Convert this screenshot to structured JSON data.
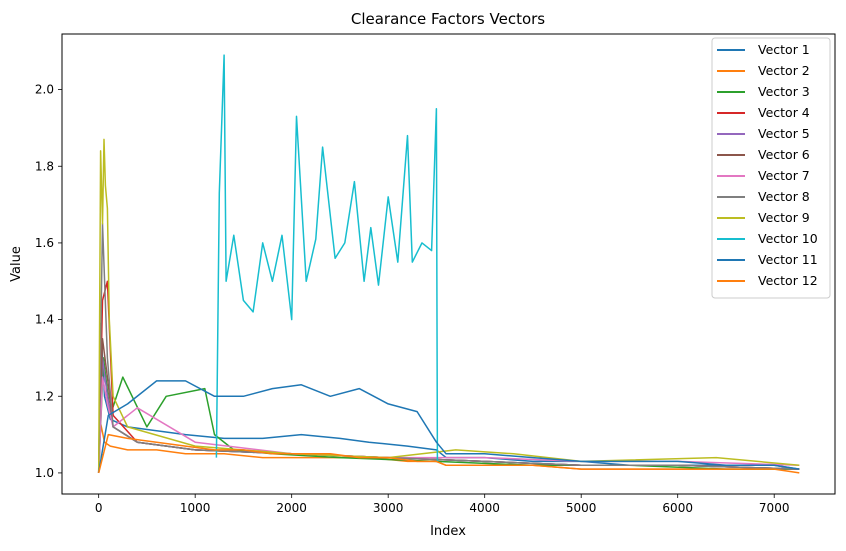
{
  "chart_data": {
    "type": "line",
    "title": "Clearance Factors Vectors",
    "xlabel": "Index",
    "ylabel": "Value",
    "xlim": [
      -380,
      7630
    ],
    "ylim": [
      0.945,
      2.145
    ],
    "xticks": [
      0,
      1000,
      2000,
      3000,
      4000,
      5000,
      6000,
      7000
    ],
    "xtick_labels": [
      "0",
      "1000",
      "2000",
      "3000",
      "4000",
      "5000",
      "6000",
      "7000"
    ],
    "yticks": [
      1.0,
      1.2,
      1.4,
      1.6,
      1.8,
      2.0
    ],
    "ytick_labels": [
      "1.0",
      "1.2",
      "1.4",
      "1.6",
      "1.8",
      "2.0"
    ],
    "grid": false,
    "legend": "upper right",
    "series": [
      {
        "name": "Vector 1",
        "color": "#1f77b4",
        "x": [
          0,
          20,
          60,
          120,
          300,
          600,
          900,
          1300,
          1700,
          2100,
          2500,
          2800,
          3200,
          3500,
          3600,
          4000,
          4500,
          5000,
          5500,
          6000,
          6500,
          7000,
          7260
        ],
        "y": [
          1.0,
          1.39,
          1.2,
          1.14,
          1.12,
          1.11,
          1.1,
          1.09,
          1.09,
          1.1,
          1.09,
          1.08,
          1.07,
          1.06,
          1.04,
          1.04,
          1.03,
          1.03,
          1.02,
          1.02,
          1.02,
          1.02,
          1.01
        ]
      },
      {
        "name": "Vector 2",
        "color": "#ff7f0e",
        "x": [
          0,
          20,
          60,
          120,
          300,
          600,
          900,
          1300,
          1700,
          2100,
          2500,
          2800,
          3200,
          3500,
          3600,
          4000,
          4500,
          5000,
          5500,
          6000,
          6500,
          7000,
          7260
        ],
        "y": [
          1.0,
          1.13,
          1.08,
          1.07,
          1.06,
          1.06,
          1.05,
          1.05,
          1.04,
          1.04,
          1.04,
          1.04,
          1.03,
          1.03,
          1.02,
          1.02,
          1.02,
          1.01,
          1.01,
          1.01,
          1.01,
          1.01,
          1.01
        ]
      },
      {
        "name": "Vector 3",
        "color": "#2ca02c",
        "x": [
          0,
          50,
          120,
          250,
          500,
          700,
          1100,
          1200,
          1400,
          1800,
          2500,
          3500,
          4500,
          5500,
          6500,
          7260
        ],
        "y": [
          1.0,
          1.3,
          1.15,
          1.25,
          1.12,
          1.2,
          1.22,
          1.1,
          1.06,
          1.05,
          1.04,
          1.03,
          1.02,
          1.02,
          1.01,
          1.01
        ]
      },
      {
        "name": "Vector 4",
        "color": "#d62728",
        "x": [
          0,
          40,
          90,
          150,
          400,
          1000,
          2000,
          3000,
          4000,
          5000,
          6000,
          7260
        ],
        "y": [
          1.0,
          1.45,
          1.5,
          1.15,
          1.08,
          1.06,
          1.05,
          1.04,
          1.03,
          1.02,
          1.02,
          1.01
        ]
      },
      {
        "name": "Vector 5",
        "color": "#9467bd",
        "x": [
          0,
          40,
          90,
          150,
          400,
          1000,
          2000,
          3000,
          4000,
          5000,
          6000,
          7260
        ],
        "y": [
          1.0,
          1.3,
          1.2,
          1.12,
          1.08,
          1.06,
          1.05,
          1.04,
          1.03,
          1.02,
          1.02,
          1.01
        ]
      },
      {
        "name": "Vector 6",
        "color": "#8c564b",
        "x": [
          0,
          40,
          90,
          150,
          400,
          1000,
          2000,
          3000,
          4000,
          5000,
          6000,
          7260
        ],
        "y": [
          1.0,
          1.35,
          1.25,
          1.12,
          1.08,
          1.06,
          1.05,
          1.04,
          1.03,
          1.02,
          1.02,
          1.01
        ]
      },
      {
        "name": "Vector 7",
        "color": "#e377c2",
        "x": [
          0,
          40,
          90,
          150,
          400,
          1000,
          2000,
          3000,
          4000,
          5000,
          6000,
          7260
        ],
        "y": [
          1.0,
          1.25,
          1.18,
          1.12,
          1.17,
          1.08,
          1.05,
          1.04,
          1.04,
          1.03,
          1.03,
          1.02
        ]
      },
      {
        "name": "Vector 8",
        "color": "#7f7f7f",
        "x": [
          0,
          40,
          90,
          150,
          400,
          1000,
          2000,
          3000,
          4000,
          5000,
          6000,
          7260
        ],
        "y": [
          1.0,
          1.65,
          1.3,
          1.12,
          1.08,
          1.06,
          1.05,
          1.04,
          1.03,
          1.02,
          1.02,
          1.01
        ]
      },
      {
        "name": "Vector 9",
        "color": "#bcbd22",
        "x": [
          0,
          20,
          40,
          55,
          70,
          90,
          110,
          150,
          300,
          1000,
          2000,
          3000,
          3700,
          4300,
          5000,
          6400,
          7260
        ],
        "y": [
          1.0,
          1.84,
          1.65,
          1.87,
          1.75,
          1.69,
          1.4,
          1.2,
          1.12,
          1.07,
          1.05,
          1.04,
          1.06,
          1.05,
          1.03,
          1.04,
          1.02
        ]
      },
      {
        "name": "Vector 10",
        "color": "#17becf",
        "x": [
          1220,
          1250,
          1300,
          1320,
          1400,
          1500,
          1600,
          1700,
          1800,
          1900,
          2000,
          2050,
          2150,
          2250,
          2320,
          2450,
          2550,
          2650,
          2750,
          2820,
          2900,
          3000,
          3100,
          3200,
          3250,
          3350,
          3450,
          3500,
          3510
        ],
        "y": [
          1.04,
          1.73,
          2.09,
          1.5,
          1.62,
          1.45,
          1.42,
          1.6,
          1.5,
          1.62,
          1.4,
          1.93,
          1.5,
          1.61,
          1.85,
          1.56,
          1.6,
          1.76,
          1.5,
          1.64,
          1.49,
          1.72,
          1.55,
          1.88,
          1.55,
          1.6,
          1.58,
          1.95,
          1.03
        ]
      },
      {
        "name": "Vector 11",
        "color": "#1f77b4",
        "x": [
          0,
          100,
          300,
          600,
          900,
          1200,
          1500,
          1800,
          2100,
          2400,
          2700,
          3000,
          3300,
          3500,
          3600,
          4000,
          4500,
          5000,
          5500,
          6000,
          6500,
          7000,
          7260
        ],
        "y": [
          1.0,
          1.15,
          1.18,
          1.24,
          1.24,
          1.2,
          1.2,
          1.22,
          1.23,
          1.2,
          1.22,
          1.18,
          1.16,
          1.08,
          1.05,
          1.05,
          1.04,
          1.03,
          1.03,
          1.03,
          1.02,
          1.02,
          1.01
        ]
      },
      {
        "name": "Vector 12",
        "color": "#ff7f0e",
        "x": [
          0,
          100,
          300,
          600,
          900,
          1200,
          1500,
          1800,
          2100,
          2400,
          2700,
          3000,
          3300,
          3500,
          3600,
          4000,
          4500,
          5000,
          5500,
          6000,
          6500,
          7000,
          7260
        ],
        "y": [
          1.0,
          1.1,
          1.09,
          1.08,
          1.07,
          1.06,
          1.06,
          1.05,
          1.05,
          1.05,
          1.04,
          1.04,
          1.03,
          1.03,
          1.02,
          1.02,
          1.02,
          1.01,
          1.01,
          1.01,
          1.01,
          1.01,
          1.0
        ]
      }
    ]
  }
}
